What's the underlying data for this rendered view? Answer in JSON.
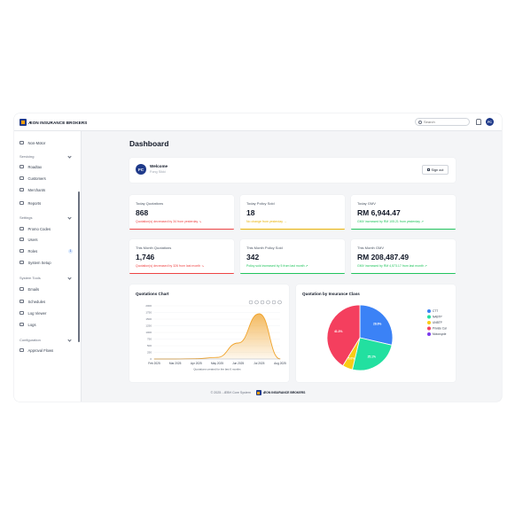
{
  "brand": {
    "name": "ÆON INSURANCE BROKERS"
  },
  "topbar": {
    "search_placeholder": "Search",
    "avatar_initials": "FC"
  },
  "sidebar": {
    "items": [
      {
        "id": "non-motor",
        "label": "Non-Motor",
        "type": "item",
        "icon": "shield-icon"
      },
      {
        "id": "servicing",
        "label": "Servicing",
        "type": "section"
      },
      {
        "id": "roadtax",
        "label": "Roadtax",
        "type": "item",
        "icon": "car-icon"
      },
      {
        "id": "customers",
        "label": "Customers",
        "type": "item",
        "icon": "users-icon"
      },
      {
        "id": "merchants",
        "label": "Merchants",
        "type": "item",
        "icon": "store-icon"
      },
      {
        "id": "reports",
        "label": "Reports",
        "type": "item",
        "icon": "report-icon"
      },
      {
        "id": "settings",
        "label": "Settings",
        "type": "section"
      },
      {
        "id": "promo-codes",
        "label": "Promo Codes",
        "type": "item",
        "icon": "tag-icon"
      },
      {
        "id": "users",
        "label": "Users",
        "type": "item",
        "icon": "user-icon"
      },
      {
        "id": "roles",
        "label": "Roles",
        "type": "item",
        "icon": "key-icon",
        "badge": "1"
      },
      {
        "id": "system-setup",
        "label": "System Setup",
        "type": "item",
        "icon": "gear-icon"
      },
      {
        "id": "system-tools",
        "label": "System Tools",
        "type": "section"
      },
      {
        "id": "emails",
        "label": "Emails",
        "type": "item",
        "icon": "mail-icon"
      },
      {
        "id": "schedules",
        "label": "Schedules",
        "type": "item",
        "icon": "calendar-icon"
      },
      {
        "id": "log-viewer",
        "label": "Log Viewer",
        "type": "item",
        "icon": "file-icon"
      },
      {
        "id": "logs",
        "label": "Logs",
        "type": "item",
        "icon": "list-icon"
      },
      {
        "id": "configuration",
        "label": "Configuration",
        "type": "section"
      },
      {
        "id": "approval-flows",
        "label": "Approval Flows",
        "type": "item",
        "icon": "flow-icon"
      }
    ]
  },
  "page": {
    "title": "Dashboard"
  },
  "welcome": {
    "initials": "FC",
    "title": "Welcome",
    "user": "Fong Sikki",
    "signout_label": "Sign out"
  },
  "stats": [
    {
      "id": "today-quotations",
      "label": "Today Quotations",
      "value": "868",
      "note": "Quotation(s) decreased by 34 from yesterday ↘",
      "color": "#ef4444"
    },
    {
      "id": "today-policy-sold",
      "label": "Today Policy Sold",
      "value": "18",
      "note": "No change from yesterday →",
      "color": "#eab308"
    },
    {
      "id": "today-gmv",
      "label": "Today GMV",
      "value": "RM 6,944.47",
      "note": "GMV increased by RM 105.21 from yesterday ↗",
      "color": "#22c55e"
    },
    {
      "id": "month-quotations",
      "label": "This Month Quotations",
      "value": "1,746",
      "note": "Quotation(s) decreased by 326 from last month ↘",
      "color": "#ef4444"
    },
    {
      "id": "month-policy-sold",
      "label": "This Month Policy Sold",
      "value": "342",
      "note": "Policy sold increased by 5 from last month ↗",
      "color": "#22c55e"
    },
    {
      "id": "month-gmv",
      "label": "This Month GMV",
      "value": "RM 208,487.49",
      "note": "GMV increased by RM 4,573.17 from last month ↗",
      "color": "#22c55e"
    }
  ],
  "quotations_chart": {
    "title": "Quotations Chart",
    "caption": "Quotations created for the last 6 months",
    "toolbar_icons": [
      "zoom-in-icon",
      "zoom-out-icon",
      "magnify-icon",
      "pan-icon",
      "home-icon",
      "menu-icon"
    ],
    "chart_data": {
      "type": "area",
      "x": [
        "Feb 2025",
        "Mar 2025",
        "Apr 2025",
        "May 2025",
        "Jun 2025",
        "Jul 2025",
        "Aug 2025"
      ],
      "values": [
        0,
        0,
        10,
        60,
        600,
        1700,
        5
      ],
      "yticks": [
        "0",
        "250",
        "500",
        "750",
        "1000",
        "1250",
        "1500",
        "1750",
        "2000"
      ],
      "ylim": [
        0,
        2000
      ],
      "color": "#f0a32b"
    }
  },
  "class_chart": {
    "title": "Quotation by Insurance Class",
    "chart_data": {
      "type": "pie",
      "series": [
        {
          "name": "CTT",
          "value": 28.6,
          "label": "28.6%",
          "color": "#3b82f6"
        },
        {
          "name": "NABTP",
          "value": 25.1,
          "label": "25.1%",
          "color": "#22e0a0"
        },
        {
          "name": "UNBTP",
          "value": 5.0,
          "label": "5.0%",
          "color": "#facc15"
        },
        {
          "name": "Private Car",
          "value": 41.3,
          "label": "41.3%",
          "color": "#f43f5e"
        },
        {
          "name": "Motorcycle",
          "value": 0,
          "label": "",
          "color": "#7c3aed"
        }
      ],
      "legend": "right"
    }
  },
  "footer": {
    "copyright": "© 2025 - ÆBH Core System",
    "brand": "ÆON INSURANCE BROKERS"
  }
}
